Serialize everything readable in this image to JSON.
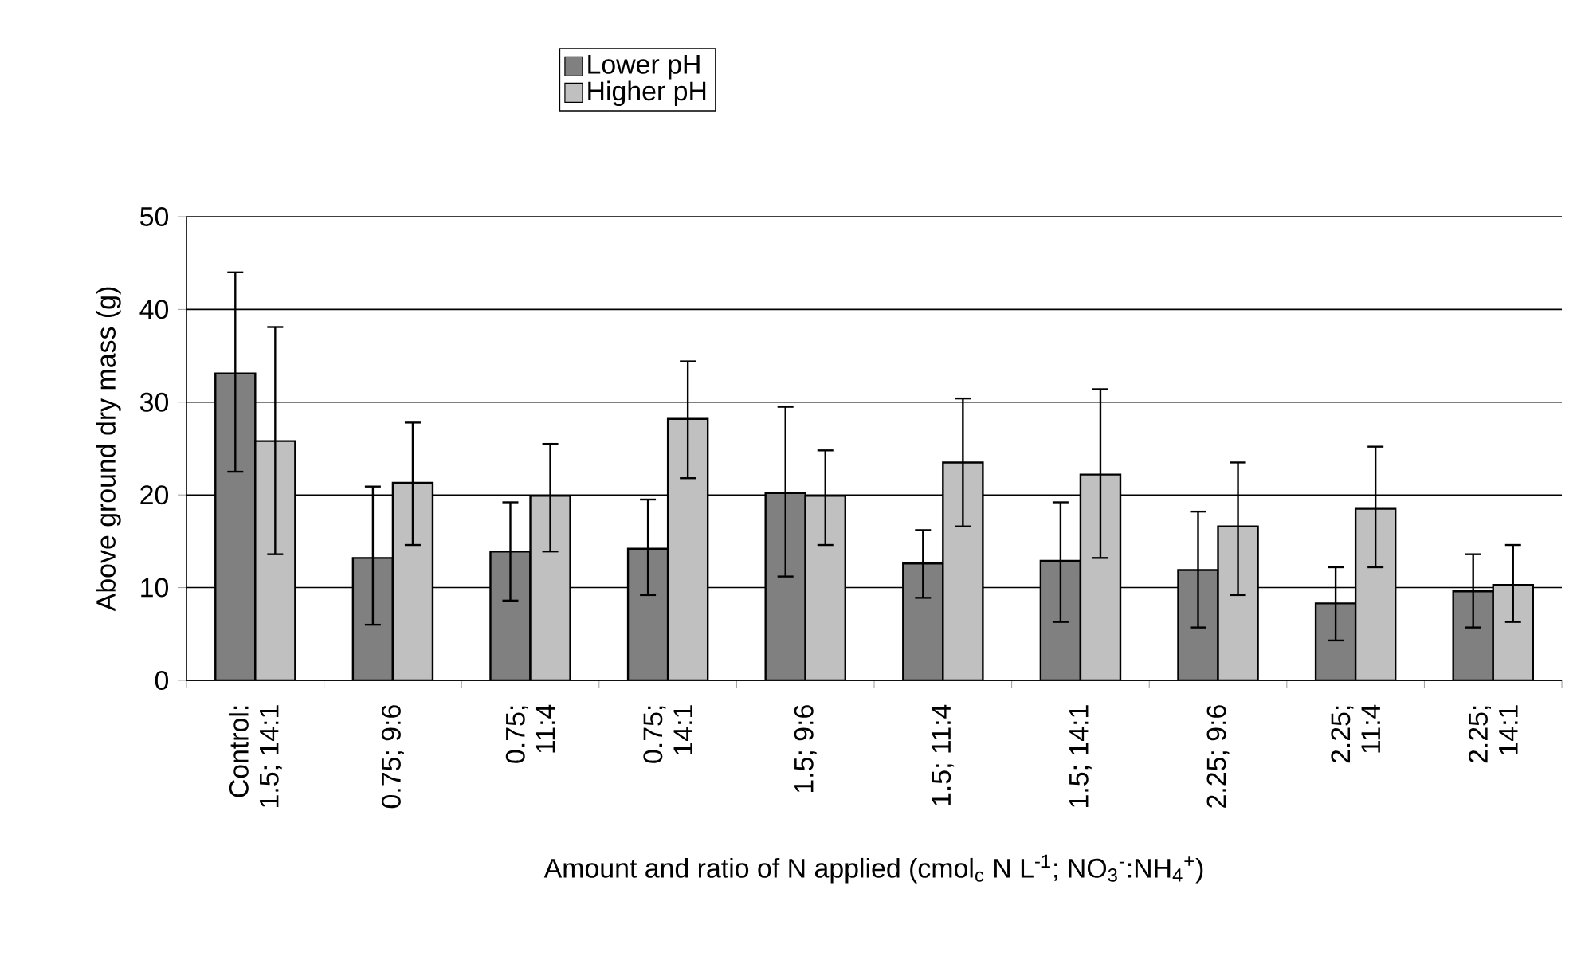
{
  "chart_data": {
    "type": "bar",
    "xlabel": "Amount and ratio of N applied (cmol$_{c}$ N L$^{-1}$; NO$_{3}$$^{-}$:NH$_{4}$$^{+}$)",
    "ylabel": "Above ground dry mass (g)",
    "categories": [
      "Control: 1.5; 14:1",
      "0.75; 9:6",
      "0.75; 11:4",
      "0.75; 14:1",
      "1.5; 9:6",
      "1.5; 11:4",
      "1.5; 14:1",
      "2.25; 9:6",
      "2.25; 11:4",
      "2.25; 14:1"
    ],
    "series": [
      {
        "name": "Lower pH",
        "color": "#808080",
        "values": [
          33.1,
          13.2,
          13.9,
          14.2,
          20.2,
          12.6,
          12.9,
          11.9,
          8.3,
          9.6
        ],
        "errors": [
          [
            22.5,
            44.0
          ],
          [
            6.0,
            20.9
          ],
          [
            8.6,
            19.2
          ],
          [
            9.2,
            19.5
          ],
          [
            11.2,
            29.5
          ],
          [
            8.9,
            16.2
          ],
          [
            6.3,
            19.2
          ],
          [
            5.7,
            18.2
          ],
          [
            4.3,
            12.2
          ],
          [
            5.7,
            13.6
          ]
        ]
      },
      {
        "name": "Higher pH",
        "color": "#c0c0c0",
        "values": [
          25.8,
          21.3,
          19.9,
          28.2,
          19.9,
          23.5,
          22.2,
          16.6,
          18.5,
          10.3
        ],
        "errors": [
          [
            13.6,
            38.1
          ],
          [
            14.6,
            27.8
          ],
          [
            13.9,
            25.5
          ],
          [
            21.8,
            34.4
          ],
          [
            14.6,
            24.8
          ],
          [
            16.6,
            30.4
          ],
          [
            13.2,
            31.4
          ],
          [
            9.2,
            23.5
          ],
          [
            12.2,
            25.2
          ],
          [
            6.3,
            14.6
          ]
        ]
      }
    ],
    "ylim": [
      0,
      50
    ],
    "yticks": [
      0,
      10,
      20,
      30,
      40,
      50
    ],
    "grid": "y",
    "legend": "top"
  }
}
